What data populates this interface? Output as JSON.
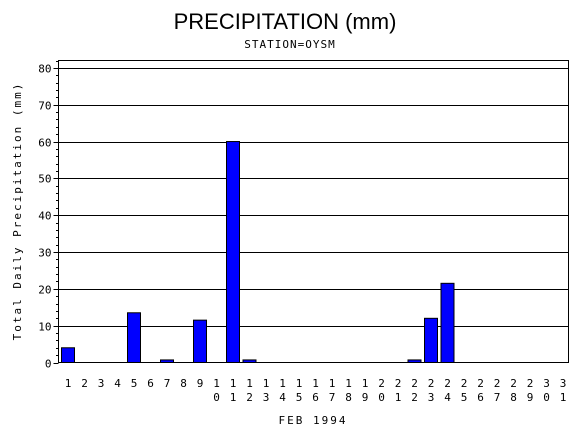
{
  "chart_data": {
    "type": "bar",
    "title": "PRECIPITATION (mm)",
    "subtitle": "STATION=OYSM",
    "xlabel": "FEB 1994",
    "ylabel": "Total Daily Precipitation (mm)",
    "ylim": [
      0,
      82
    ],
    "yticks": [
      0,
      10,
      20,
      30,
      40,
      50,
      60,
      70,
      80
    ],
    "grid": true,
    "bar_color": "#0000ff",
    "categories": [
      "1",
      "2",
      "3",
      "4",
      "5",
      "6",
      "7",
      "8",
      "9",
      "10",
      "11",
      "12",
      "13",
      "14",
      "15",
      "16",
      "17",
      "18",
      "19",
      "20",
      "21",
      "22",
      "23",
      "24",
      "25",
      "26",
      "27",
      "28",
      "29",
      "30",
      "31"
    ],
    "values": [
      4,
      0,
      0,
      0,
      13.5,
      0,
      0.7,
      0,
      11.5,
      0,
      60,
      0.7,
      0,
      0,
      0,
      0,
      0,
      0,
      0,
      0,
      0,
      0.7,
      12,
      21.5,
      0,
      0,
      0,
      0,
      0,
      0,
      0
    ]
  }
}
